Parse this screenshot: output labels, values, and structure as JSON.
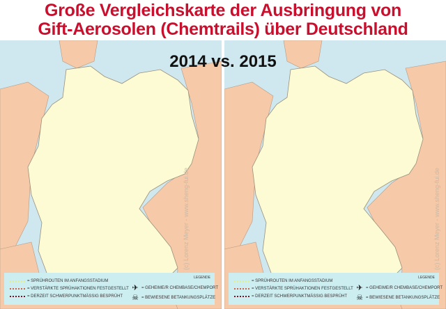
{
  "title": {
    "line1": "Große Vergleichskarte der Ausbringung von",
    "line2": "Gift-Aerosolen (Chemtrails) über Deutschland"
  },
  "subtitle": "2014 vs. 2015",
  "watermark": "(c) Lorenz Meyer - www.sheng-fui.de",
  "colors": {
    "title": "#c8102e",
    "sea": "#cfe8ef",
    "germany": "#fdfbd4",
    "neighbors": "#f6caa8",
    "legend_bg": "#cdeef1"
  },
  "maps": [
    {
      "year": "2014"
    },
    {
      "year": "2015"
    }
  ],
  "legend": {
    "heading": "Legende",
    "items": [
      {
        "icon": "dotted-line-yellow",
        "color": "#e8f07a",
        "label": "= Sprührouten im Anfangsstadium"
      },
      {
        "icon": "dotted-line-red",
        "color": "#d0604a",
        "label": "= Verstärkte Sprühaktionen festgestellt"
      },
      {
        "icon": "dotted-line-darkred",
        "color": "#7a1020",
        "label": "= Derzeit schwerpunktmässig besprüht"
      },
      {
        "icon": "airplane-icon",
        "label": "= Geheime/r Chembase/Chemport"
      },
      {
        "icon": "skull-tanker-icon",
        "label": "= Bewiesene Betankungsplätze"
      }
    ]
  }
}
